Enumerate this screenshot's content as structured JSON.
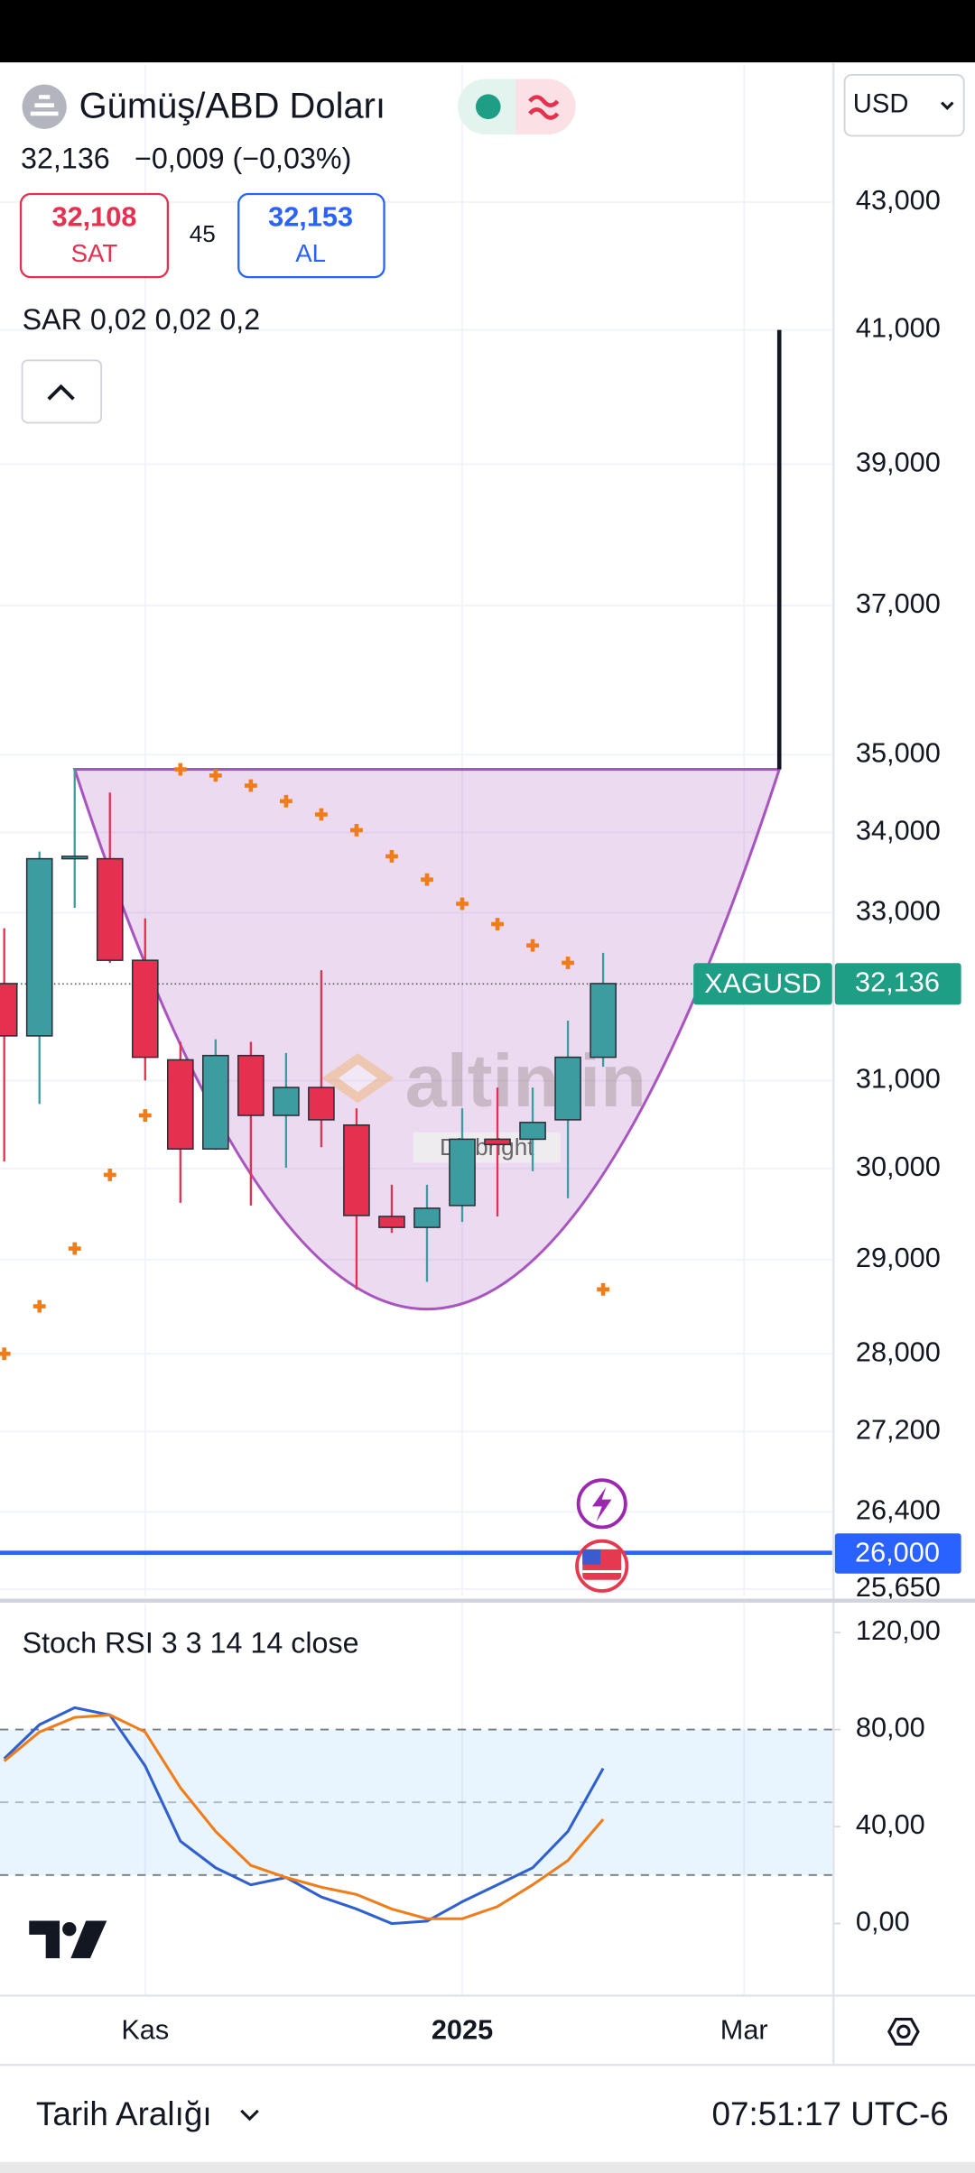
{
  "header": {
    "title": "Gümüş/ABD Doları",
    "price": "32,136",
    "change": "−0,009 (−0,03%)",
    "sell": {
      "price": "32,108",
      "label": "SAT"
    },
    "spread": "45",
    "buy": {
      "price": "32,153",
      "label": "AL"
    },
    "currency": "USD"
  },
  "chart_data": [
    {
      "type": "candlestick",
      "indicator": "SAR 0,02 0,02 0,2",
      "x": [
        0,
        1,
        2,
        3,
        4,
        5,
        6,
        7,
        8,
        9,
        10,
        11,
        12,
        13,
        14,
        15,
        16,
        17
      ],
      "open": [
        32.14,
        31.52,
        33.67,
        33.67,
        32.42,
        31.24,
        30.22,
        31.29,
        30.6,
        30.92,
        30.49,
        29.47,
        29.35,
        29.59,
        30.33,
        30.33,
        30.55,
        31.27
      ],
      "high": [
        32.81,
        33.76,
        34.81,
        34.51,
        32.93,
        31.45,
        31.48,
        31.45,
        31.32,
        32.3,
        30.68,
        29.82,
        29.82,
        30.68,
        30.92,
        30.92,
        31.7,
        32.51
      ],
      "low": [
        30.08,
        30.73,
        33.06,
        32.39,
        31.0,
        29.62,
        30.21,
        29.59,
        30.01,
        30.24,
        28.68,
        29.29,
        28.76,
        29.41,
        29.47,
        29.97,
        29.67,
        31.16
      ],
      "close": [
        31.52,
        33.67,
        33.7,
        32.42,
        31.27,
        30.22,
        31.29,
        30.6,
        30.92,
        30.55,
        29.48,
        29.35,
        29.56,
        30.33,
        30.27,
        30.52,
        31.27,
        32.14
      ],
      "up_color": "#3d9ca0",
      "down_color": "#e5304f",
      "sar": {
        "values": [
          28.0,
          28.5,
          29.12,
          29.93,
          30.6,
          34.81,
          34.73,
          34.6,
          34.4,
          34.23,
          34.03,
          33.7,
          33.41,
          33.11,
          32.86,
          32.6,
          32.39,
          28.68
        ],
        "color": "#f07d1a"
      },
      "xlim": [
        -0.12,
        23.5
      ],
      "xticks": [
        {
          "value": 4,
          "label": "Kas"
        },
        {
          "value": 13,
          "label": "2025"
        },
        {
          "value": 21,
          "label": "Mar"
        }
      ],
      "ylim": [
        25.58,
        45.25
      ],
      "log_scale": true,
      "yticks": [
        {
          "value": 43,
          "label": "43,000"
        },
        {
          "value": 41,
          "label": "41,000"
        },
        {
          "value": 39,
          "label": "39,000"
        },
        {
          "value": 37,
          "label": "37,000"
        },
        {
          "value": 35,
          "label": "35,000"
        },
        {
          "value": 34,
          "label": "34,000"
        },
        {
          "value": 33,
          "label": "33,000"
        },
        {
          "value": 31,
          "label": "31,000"
        },
        {
          "value": 30,
          "label": "30,000"
        },
        {
          "value": 29,
          "label": "29,000"
        },
        {
          "value": 28,
          "label": "28,000"
        },
        {
          "value": 27.2,
          "label": "27,200"
        },
        {
          "value": 26.4,
          "label": "26,400"
        },
        {
          "value": 25.65,
          "label": "25,650"
        }
      ],
      "grid": true,
      "price_line": {
        "symbol": "XAGUSD",
        "value": 32.136,
        "label": "32,136",
        "color": "#1e9e85"
      },
      "level_line": {
        "value": 26,
        "label": "26,000",
        "color": "#2962ff"
      },
      "cup": {
        "start_x": 2,
        "bottom_x": 12,
        "end_x": 22,
        "rim": 34.81,
        "bottom": 28.47,
        "color": "#a855c0"
      },
      "target_line": {
        "x": 22,
        "from": 34.81,
        "to": 41
      }
    },
    {
      "type": "line",
      "title": "Stoch RSI 3 3 14 14 close",
      "x": [
        0,
        1,
        2,
        3,
        4,
        5,
        6,
        7,
        8,
        9,
        10,
        11,
        12,
        13,
        14,
        15,
        16,
        17
      ],
      "series": [
        {
          "color": "#3060d0",
          "values": [
            68,
            82,
            89,
            86,
            65,
            34,
            23,
            16,
            19,
            11,
            6,
            0,
            1,
            9,
            16,
            23,
            38,
            64
          ]
        },
        {
          "color": "#f07d1a",
          "values": [
            67,
            79,
            85,
            86,
            79,
            56,
            38,
            24,
            19,
            15,
            12,
            6,
            2,
            2,
            7,
            16,
            26,
            43
          ]
        }
      ],
      "ylim": [
        -29.7,
        132
      ],
      "yticks": [
        {
          "value": 120,
          "label": "120,00"
        },
        {
          "value": 80,
          "label": "80,00"
        },
        {
          "value": 40,
          "label": "40,00"
        },
        {
          "value": 0,
          "label": "0,00"
        }
      ],
      "band": [
        20,
        80
      ],
      "midline": 50
    }
  ],
  "watermark": {
    "brand": "altin.in",
    "text": "Diebright"
  },
  "footer": {
    "range": "Tarih Aralığı",
    "time": "07:51:17 UTC-6"
  }
}
